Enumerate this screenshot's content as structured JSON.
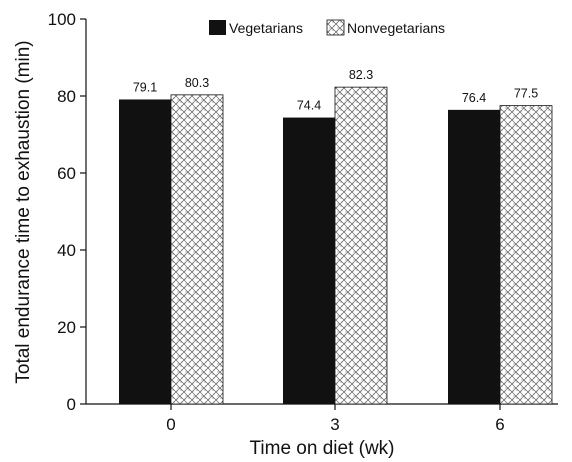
{
  "chart_data": {
    "type": "bar",
    "title": "",
    "xlabel": "Time on diet (wk)",
    "ylabel": "Total endurance time to exhaustion (min)",
    "categories": [
      "0",
      "3",
      "6"
    ],
    "series": [
      {
        "name": "Vegetarians",
        "values": [
          79.1,
          74.4,
          76.4
        ],
        "labels": [
          "79.1",
          "74.4",
          "76.4"
        ],
        "fill": "solid-black"
      },
      {
        "name": "Nonvegetarians",
        "values": [
          80.3,
          82.3,
          77.5
        ],
        "labels": [
          "80.3",
          "82.3",
          "77.5"
        ],
        "fill": "dotted-crosshatch"
      }
    ],
    "ylim": [
      0,
      100
    ],
    "yticks": [
      "0",
      "20",
      "40",
      "60",
      "80",
      "100"
    ],
    "grid": false,
    "legend_position": "top"
  },
  "colors": {
    "series_1": "#111111",
    "series_2_pattern": "#333333",
    "axis": "#111111",
    "background": "#ffffff"
  }
}
